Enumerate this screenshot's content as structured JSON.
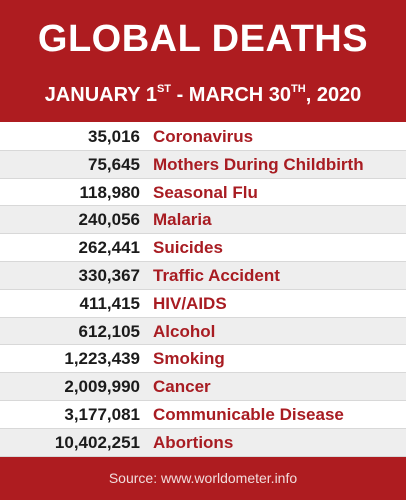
{
  "header": {
    "title": "GLOBAL DEATHS",
    "subtitle": {
      "part1": "JANUARY 1",
      "sup1": "ST",
      "part2": " - MARCH 30",
      "sup2": "TH",
      "part3": ", 2020"
    }
  },
  "rows": [
    {
      "count": "35,016",
      "cause": "Coronavirus"
    },
    {
      "count": "75,645",
      "cause": "Mothers During Childbirth"
    },
    {
      "count": "118,980",
      "cause": "Seasonal Flu"
    },
    {
      "count": "240,056",
      "cause": "Malaria"
    },
    {
      "count": "262,441",
      "cause": "Suicides"
    },
    {
      "count": "330,367",
      "cause": "Traffic Accident"
    },
    {
      "count": "411,415",
      "cause": "HIV/AIDS"
    },
    {
      "count": "612,105",
      "cause": "Alcohol"
    },
    {
      "count": "1,223,439",
      "cause": "Smoking"
    },
    {
      "count": "2,009,990",
      "cause": "Cancer"
    },
    {
      "count": "3,177,081",
      "cause": "Communicable Disease"
    },
    {
      "count": "10,402,251",
      "cause": "Abortions"
    }
  ],
  "footer": {
    "source": "Source: www.worldometer.info"
  },
  "colors": {
    "brand_red": "#ae1c20",
    "cause_red": "#a81c22",
    "number_text": "#1b1b1b",
    "stripe": "#eeeeee"
  }
}
